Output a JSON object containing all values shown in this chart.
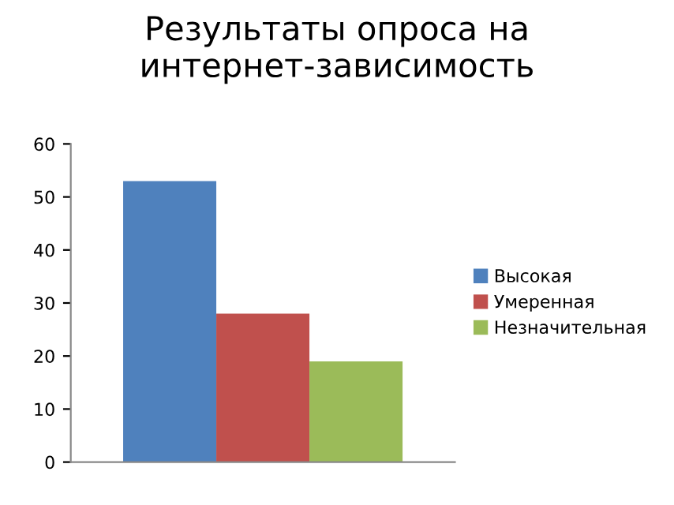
{
  "chart_data": {
    "type": "bar",
    "title": "Результаты опроса на интернет-зависимость",
    "categories": [
      null
    ],
    "series": [
      {
        "name": "Высокая",
        "color": "#4f81bd",
        "values": [
          53
        ]
      },
      {
        "name": "Умеренная",
        "color": "#c0504d",
        "values": [
          28
        ]
      },
      {
        "name": "Незначительная",
        "color": "#9bbb59",
        "values": [
          19
        ]
      }
    ],
    "ylim": [
      0,
      60
    ],
    "yticks": [
      0,
      10,
      20,
      30,
      40,
      50,
      60
    ],
    "grid": false,
    "legend": "right"
  }
}
